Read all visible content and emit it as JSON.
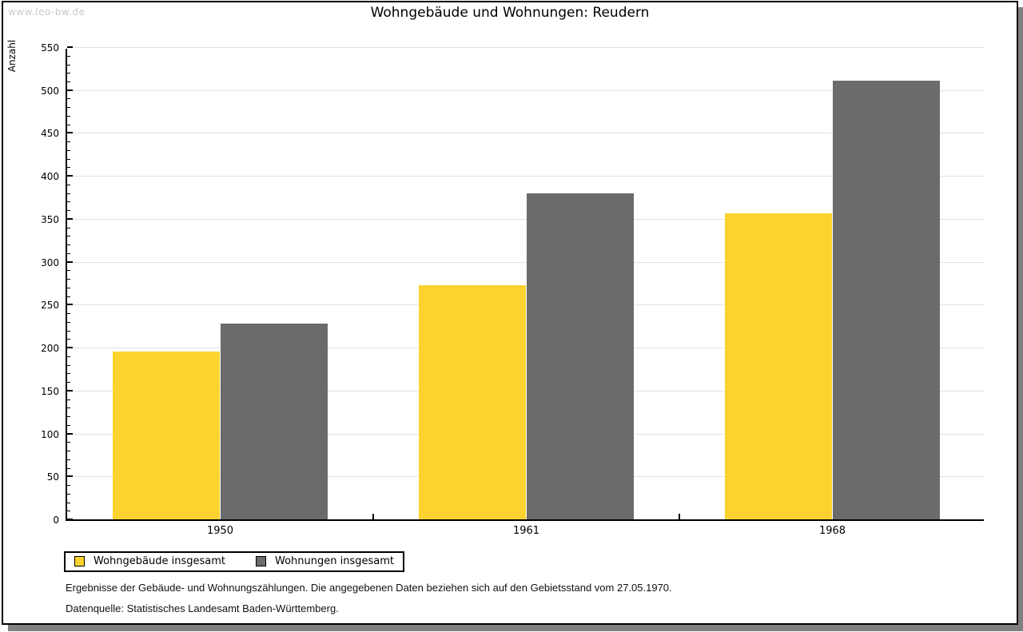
{
  "watermark": "www.leo-bw.de",
  "title": "Wohngebäude und Wohnungen: Reudern",
  "chart_data": {
    "type": "bar",
    "title": "Wohngebäude und Wohnungen: Reudern",
    "categories": [
      "1950",
      "1961",
      "1968"
    ],
    "series": [
      {
        "name": "Wohngebäude insgesamt",
        "color": "#FCD32E",
        "values": [
          195,
          273,
          356
        ]
      },
      {
        "name": "Wohnungen insgesamt",
        "color": "#6B6B6B",
        "values": [
          228,
          380,
          511
        ]
      }
    ],
    "xlabel": "",
    "ylabel": "Anzahl",
    "ylim": [
      0,
      550
    ],
    "ytick_step": 50,
    "ytick_minor_step": 10,
    "grid": true,
    "legend_position": "bottom-left",
    "gridline_color": "#e2e2e2"
  },
  "footer": {
    "line1": "Ergebnisse der Gebäude- und Wohnungszählungen. Die angegebenen Daten beziehen sich auf den Gebietsstand vom 27.05.1970.",
    "line2": "Datenquelle: Statistisches Landesamt Baden-Württemberg."
  }
}
